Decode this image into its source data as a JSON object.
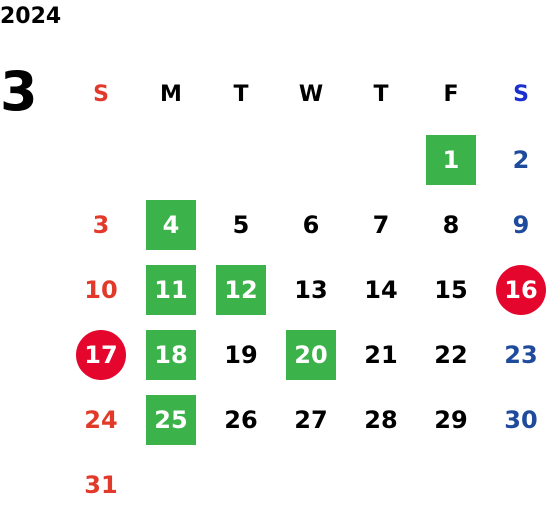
{
  "year": "2024",
  "month": "3",
  "colors": {
    "sunday": "#e23a2a",
    "saturday": "#1f4b9c",
    "saturday_header": "#1a2fd0",
    "green_highlight": "#3cb24a",
    "red_circle": "#e4062d"
  },
  "weekday_headers": [
    "S",
    "M",
    "T",
    "W",
    "T",
    "F",
    "S"
  ],
  "weeks": [
    [
      "",
      "",
      "",
      "",
      "",
      "1",
      "2"
    ],
    [
      "3",
      "4",
      "5",
      "6",
      "7",
      "8",
      "9"
    ],
    [
      "10",
      "11",
      "12",
      "13",
      "14",
      "15",
      "16"
    ],
    [
      "17",
      "18",
      "19",
      "20",
      "21",
      "22",
      "23"
    ],
    [
      "24",
      "25",
      "26",
      "27",
      "28",
      "29",
      "30"
    ],
    [
      "31",
      "",
      "",
      "",
      "",
      "",
      ""
    ]
  ],
  "green_days": [
    "1",
    "4",
    "11",
    "12",
    "18",
    "20",
    "25"
  ],
  "red_circle_days": [
    "16",
    "17"
  ]
}
